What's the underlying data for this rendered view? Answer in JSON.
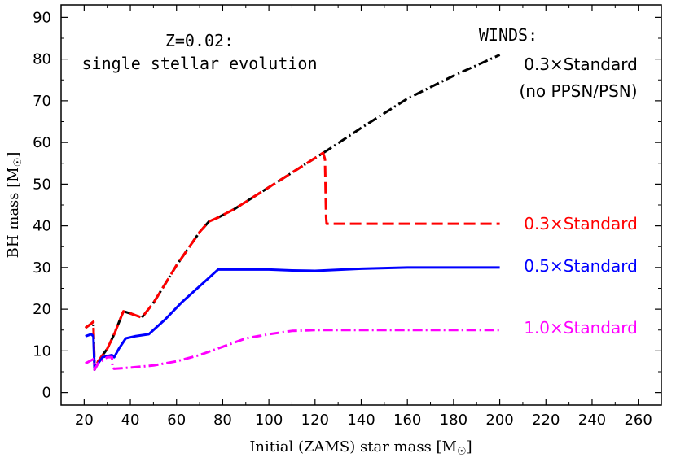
{
  "chart_data": {
    "type": "line",
    "title": "",
    "xlabel": "Initial (ZAMS) star mass [M",
    "xlabel_suffix": "]",
    "ylabel": "BH mass [M",
    "ylabel_suffix": "]",
    "sun_symbol": "☉",
    "xlim": [
      10,
      270
    ],
    "ylim": [
      -3,
      93
    ],
    "xticks": [
      20,
      40,
      60,
      80,
      100,
      120,
      140,
      160,
      180,
      200,
      220,
      240,
      260
    ],
    "yticks": [
      0,
      10,
      20,
      30,
      40,
      50,
      60,
      70,
      80,
      90
    ],
    "annotations": {
      "metallicity": "Z=0.02:",
      "evolution": "single stellar evolution",
      "winds_header": "WINDS:"
    },
    "series": [
      {
        "name": "0.3×Standard (no PPSN/PSN)",
        "label_lines": [
          "0.3×Standard",
          "(no PPSN/PSN)"
        ],
        "color": "#000000",
        "style": "dashdot",
        "x": [
          20.5,
          23,
          24,
          24.5,
          26,
          30,
          33,
          37,
          40,
          45,
          50,
          55,
          60,
          65,
          70,
          74,
          78,
          85,
          95,
          105,
          115,
          125,
          140,
          160,
          180,
          200
        ],
        "y": [
          15.5,
          16.5,
          17,
          5.5,
          7.5,
          10.5,
          14,
          19.5,
          19,
          18,
          21.5,
          26,
          30.5,
          34.5,
          38.5,
          41,
          42,
          44,
          47.5,
          51,
          54.5,
          58,
          63.5,
          70.5,
          76,
          81
        ]
      },
      {
        "name": "0.3×Standard",
        "label_lines": [
          "0.3×Standard"
        ],
        "color": "#ff0000",
        "style": "dashed",
        "x": [
          20.5,
          23,
          24,
          24.5,
          26,
          30,
          33,
          37,
          40,
          45,
          50,
          55,
          60,
          65,
          70,
          74,
          78,
          85,
          95,
          105,
          115,
          123.5,
          124.3,
          124.8,
          125,
          140,
          160,
          180,
          200
        ],
        "y": [
          15.5,
          16.5,
          17,
          5.5,
          7.5,
          10.5,
          14,
          19.5,
          19,
          18,
          21.5,
          26,
          30.5,
          34.5,
          38.5,
          41,
          42,
          44,
          47.5,
          51,
          54.5,
          57.5,
          56,
          42,
          40.5,
          40.5,
          40.5,
          40.5,
          40.5
        ]
      },
      {
        "name": "0.5×Standard",
        "label_lines": [
          "0.5×Standard"
        ],
        "color": "#0000ff",
        "style": "solid",
        "x": [
          20.5,
          23,
          24,
          24.5,
          26,
          28,
          32,
          33,
          35,
          38,
          42,
          48,
          55,
          62,
          70,
          78,
          82,
          90,
          100,
          110,
          120,
          140,
          160,
          180,
          200
        ],
        "y": [
          13.5,
          14,
          13.5,
          5.5,
          7,
          8.5,
          9,
          8.5,
          10.5,
          13,
          13.5,
          14,
          17.5,
          21.5,
          25.5,
          29.5,
          29.5,
          29.5,
          29.5,
          29.3,
          29.2,
          29.7,
          30,
          30,
          30
        ]
      },
      {
        "name": "1.0×Standard",
        "label_lines": [
          "1.0×Standard"
        ],
        "color": "#ff00ff",
        "style": "dashdot",
        "x": [
          20.5,
          24,
          24.5,
          26,
          30,
          32,
          32.3,
          33,
          40,
          50,
          60,
          70,
          80,
          90,
          100,
          110,
          120,
          140,
          160,
          180,
          200
        ],
        "y": [
          7,
          8,
          5.5,
          7,
          8.5,
          8.5,
          6,
          5.7,
          6,
          6.5,
          7.5,
          9,
          11,
          13,
          14,
          14.8,
          15,
          15,
          15,
          15,
          15
        ]
      }
    ]
  }
}
